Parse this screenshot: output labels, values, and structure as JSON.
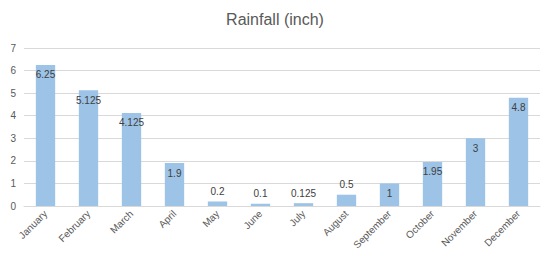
{
  "chart_data": {
    "type": "bar",
    "title": "Rainfall (inch)",
    "categories": [
      "January",
      "February",
      "March",
      "April",
      "May",
      "June",
      "July",
      "August",
      "September",
      "October",
      "November",
      "December"
    ],
    "values": [
      6.25,
      5.125,
      4.125,
      1.9,
      0.2,
      0.1,
      0.125,
      0.5,
      1,
      1.95,
      3,
      4.8
    ],
    "color": "#9dc3e6",
    "ylim": [
      0,
      7
    ],
    "yticks": [
      0,
      1,
      2,
      3,
      4,
      5,
      6,
      7
    ],
    "grid": true,
    "data_labels": true
  }
}
